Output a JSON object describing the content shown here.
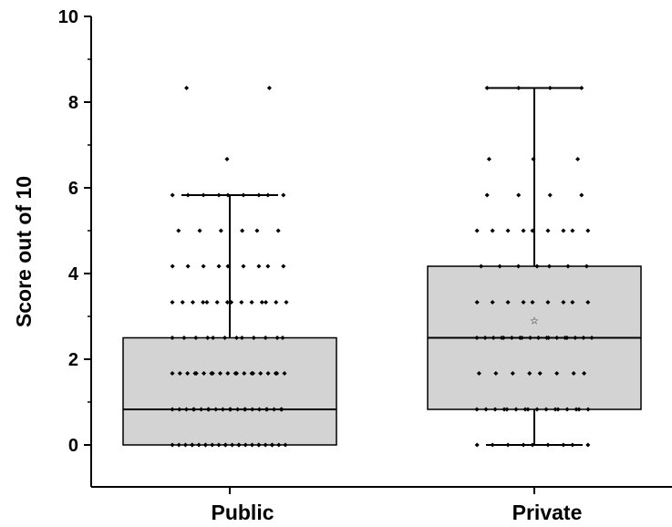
{
  "chart_data": {
    "type": "box",
    "title": "",
    "xlabel": "",
    "ylabel": "Score out of 10",
    "ylim": [
      0,
      10
    ],
    "yticks": [
      "0",
      "2",
      "4",
      "6",
      "8",
      "10"
    ],
    "box_fill": "#d3d3d3",
    "point_color": "#000000",
    "grid": false,
    "categories": [
      "Public",
      "Private"
    ],
    "boxes": [
      {
        "name": "Public",
        "whisker_low": 0,
        "q1": 0,
        "median": 0.83,
        "q3": 2.5,
        "whisker_high": 5.83,
        "mean": null,
        "points": [
          {
            "y": 0,
            "n": 24
          },
          {
            "y": 0.83,
            "n": 22
          },
          {
            "y": 1.67,
            "n": 20
          },
          {
            "y": 2.5,
            "n": 12
          },
          {
            "y": 3.33,
            "n": 14
          },
          {
            "y": 4.17,
            "n": 9
          },
          {
            "y": 5,
            "n": 6
          },
          {
            "y": 5.83,
            "n": 9
          },
          {
            "y": 6.67,
            "n": 1
          },
          {
            "y": 8.33,
            "n": 2
          }
        ]
      },
      {
        "name": "Private",
        "whisker_low": 0,
        "q1": 0.83,
        "median": 2.5,
        "q3": 4.17,
        "whisker_high": 8.33,
        "mean": 2.9,
        "points": [
          {
            "y": 0,
            "n": 9
          },
          {
            "y": 0.83,
            "n": 16
          },
          {
            "y": 1.67,
            "n": 8
          },
          {
            "y": 2.5,
            "n": 18
          },
          {
            "y": 3.33,
            "n": 9
          },
          {
            "y": 4.17,
            "n": 7
          },
          {
            "y": 5,
            "n": 9
          },
          {
            "y": 5.83,
            "n": 4
          },
          {
            "y": 6.67,
            "n": 3
          },
          {
            "y": 8.33,
            "n": 4
          }
        ]
      }
    ]
  }
}
